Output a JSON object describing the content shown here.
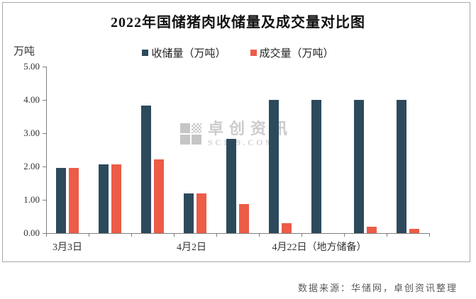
{
  "title": "2022年国储猪肉收储量及成交量对比图",
  "legend": [
    {
      "label": "收储量（万吨）",
      "color": "#2d4a5c"
    },
    {
      "label": "成交量（万吨）",
      "color": "#ec5c47"
    }
  ],
  "y_axis": {
    "unit": "万吨",
    "ticks": [
      "5.00",
      "4.00",
      "3.00",
      "2.00",
      "1.00",
      "0.00"
    ]
  },
  "x_axis": {
    "labels": [
      {
        "index": 0,
        "label": "3月3日"
      },
      {
        "index": 3,
        "label": "4月2日"
      },
      {
        "index": 6,
        "label": "4月22日（地方储备）"
      }
    ]
  },
  "watermark": {
    "name": "卓创资讯",
    "domain": "SCI99.COM"
  },
  "footer": "数据来源：华储网，卓创资讯整理",
  "chart_data": {
    "type": "bar",
    "title": "2022年国储猪肉收储量及成交量对比图",
    "categories": [
      "3月3日",
      "",
      "",
      "4月2日",
      "",
      "",
      "4月22日（地方储备）",
      "",
      ""
    ],
    "series": [
      {
        "name": "收储量（万吨）",
        "color": "#2d4a5c",
        "values": [
          1.96,
          2.07,
          3.82,
          1.2,
          2.84,
          4.0,
          4.0,
          4.0,
          4.0
        ]
      },
      {
        "name": "成交量（万吨）",
        "color": "#ec5c47",
        "values": [
          1.96,
          2.07,
          2.21,
          1.2,
          0.87,
          0.3,
          0.0,
          0.2,
          0.13
        ]
      }
    ],
    "ylabel": "万吨",
    "ylim": [
      0,
      5
    ],
    "y_tick_step": 1.0,
    "grid": false,
    "legend_position": "top-center",
    "visible_x_tick_labels": [
      "3月3日",
      "4月2日",
      "4月22日（地方储备）"
    ]
  }
}
